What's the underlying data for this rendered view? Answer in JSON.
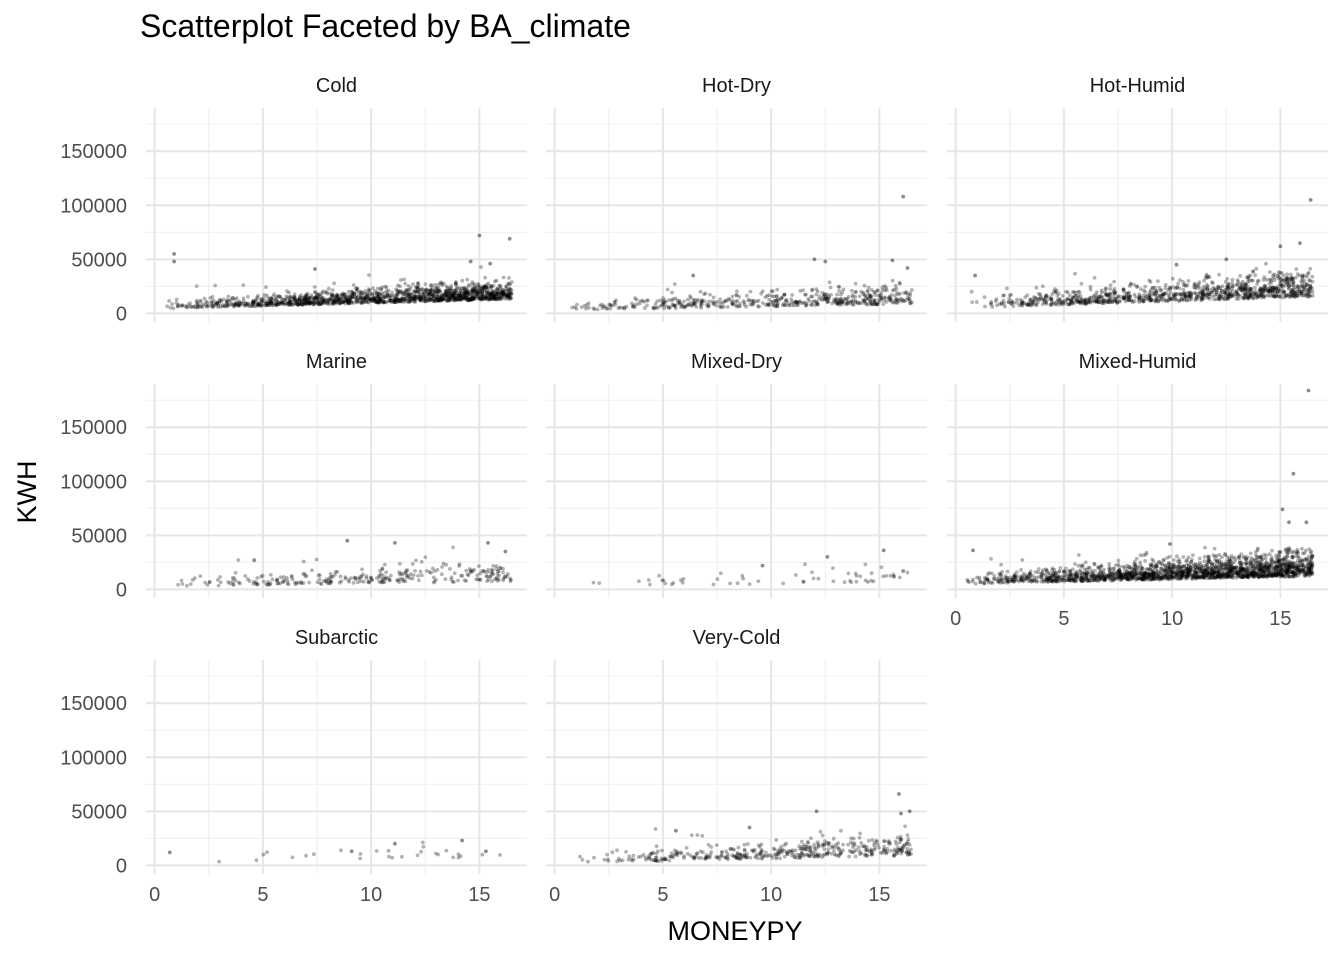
{
  "chart_data": {
    "type": "scatter",
    "title": "Scatterplot Faceted by BA_climate",
    "xlabel": "MONEYPY",
    "ylabel": "KWH",
    "xlim": [
      -0.4,
      17.2
    ],
    "ylim": [
      -8000,
      190000
    ],
    "x_ticks": [
      0,
      5,
      10,
      15
    ],
    "y_ticks": [
      0,
      50000,
      100000,
      150000
    ],
    "grid": true,
    "point_color": "#000000",
    "point_opacity": 0.3,
    "facet_var": "BA_climate",
    "facets": [
      {
        "name": "Cold",
        "density": 1.0,
        "base_kwh": 6500,
        "slope_kwh": 550,
        "spread_kwh": 5000,
        "extremes": [
          [
            0.9,
            55000
          ],
          [
            0.9,
            48000
          ],
          [
            7.4,
            41000
          ],
          [
            15.0,
            72000
          ],
          [
            16.4,
            69000
          ],
          [
            15.5,
            46000
          ],
          [
            14.6,
            48000
          ]
        ]
      },
      {
        "name": "Hot-Dry",
        "density": 0.35,
        "base_kwh": 5500,
        "slope_kwh": 350,
        "spread_kwh": 5500,
        "extremes": [
          [
            16.1,
            108000
          ],
          [
            12.0,
            50000
          ],
          [
            15.6,
            49000
          ],
          [
            12.5,
            48000
          ],
          [
            6.4,
            35000
          ],
          [
            16.3,
            42000
          ]
        ]
      },
      {
        "name": "Hot-Humid",
        "density": 0.7,
        "base_kwh": 8000,
        "slope_kwh": 650,
        "spread_kwh": 6500,
        "extremes": [
          [
            16.4,
            105000
          ],
          [
            15.0,
            62000
          ],
          [
            15.9,
            65000
          ],
          [
            10.2,
            45000
          ],
          [
            12.5,
            50000
          ],
          [
            0.9,
            35000
          ]
        ]
      },
      {
        "name": "Marine",
        "density": 0.2,
        "base_kwh": 5500,
        "slope_kwh": 300,
        "spread_kwh": 6000,
        "extremes": [
          [
            8.9,
            45000
          ],
          [
            11.1,
            43000
          ],
          [
            15.4,
            43000
          ],
          [
            16.2,
            35000
          ],
          [
            4.6,
            27000
          ]
        ]
      },
      {
        "name": "Mixed-Dry",
        "density": 0.04,
        "base_kwh": 4000,
        "slope_kwh": 350,
        "spread_kwh": 5000,
        "extremes": [
          [
            15.2,
            36000
          ],
          [
            12.6,
            30000
          ],
          [
            9.6,
            22000
          ],
          [
            16.1,
            17000
          ]
        ]
      },
      {
        "name": "Mixed-Humid",
        "density": 1.3,
        "base_kwh": 8000,
        "slope_kwh": 450,
        "spread_kwh": 6500,
        "extremes": [
          [
            16.3,
            184000
          ],
          [
            15.6,
            107000
          ],
          [
            15.1,
            74000
          ],
          [
            15.4,
            62000
          ],
          [
            16.2,
            62000
          ],
          [
            0.8,
            36000
          ],
          [
            9.9,
            42000
          ]
        ]
      },
      {
        "name": "Subarctic",
        "density": 0.02,
        "base_kwh": 5000,
        "slope_kwh": 300,
        "spread_kwh": 5000,
        "extremes": [
          [
            0.7,
            12000
          ],
          [
            14.2,
            23000
          ],
          [
            11.1,
            20000
          ],
          [
            9.1,
            13000
          ],
          [
            15.3,
            13000
          ]
        ]
      },
      {
        "name": "Very-Cold",
        "density": 0.3,
        "base_kwh": 5000,
        "slope_kwh": 420,
        "spread_kwh": 6000,
        "extremes": [
          [
            15.9,
            66000
          ],
          [
            16.4,
            50000
          ],
          [
            12.1,
            50000
          ],
          [
            16.0,
            48000
          ],
          [
            9.0,
            35000
          ],
          [
            5.6,
            32000
          ]
        ]
      }
    ]
  }
}
